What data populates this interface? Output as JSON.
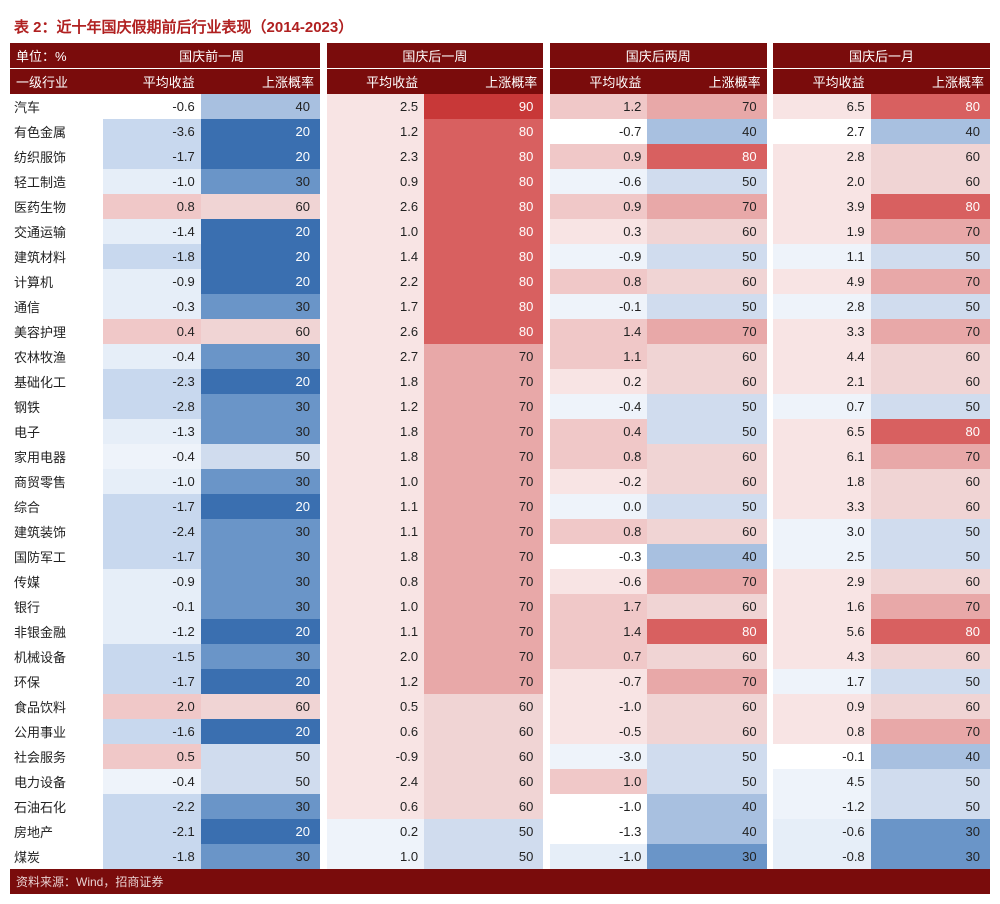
{
  "title": "表 2：近十年国庆假期前后行业表现（2014-2023）",
  "unit_label": "单位：%",
  "col_industry": "一级行业",
  "col_return": "平均收益",
  "col_prob": "上涨概率",
  "footer": "资料来源：Wind，招商证券",
  "periods": [
    "国庆前一周",
    "国庆后一周",
    "国庆后两周",
    "国庆后一月"
  ],
  "col_widths": {
    "label": 86,
    "ret": 90,
    "prob": 110,
    "sep": 6
  },
  "colors": {
    "header_bg": "#7a0c0c",
    "header_fg": "#ffffff",
    "title_fg": "#b02020",
    "prob_scale": {
      "20": "#3a6fb0",
      "30": "#6a95c8",
      "40": "#a8c0e0",
      "50": "#d0dcee",
      "60": "#f0d4d4",
      "70": "#e8a8a8",
      "80": "#d86060",
      "90": "#c83838"
    },
    "ret_bg_default": "#ffffff"
  },
  "rows": [
    {
      "n": "汽车",
      "v": [
        [
          -0.6,
          40
        ],
        [
          2.5,
          90
        ],
        [
          1.2,
          70
        ],
        [
          6.5,
          80
        ]
      ]
    },
    {
      "n": "有色金属",
      "v": [
        [
          -3.6,
          20
        ],
        [
          1.2,
          80
        ],
        [
          -0.7,
          40
        ],
        [
          2.7,
          40
        ]
      ]
    },
    {
      "n": "纺织服饰",
      "v": [
        [
          -1.7,
          20
        ],
        [
          2.3,
          80
        ],
        [
          0.9,
          80
        ],
        [
          2.8,
          60
        ]
      ]
    },
    {
      "n": "轻工制造",
      "v": [
        [
          -1.0,
          30
        ],
        [
          0.9,
          80
        ],
        [
          -0.6,
          50
        ],
        [
          2.0,
          60
        ]
      ]
    },
    {
      "n": "医药生物",
      "v": [
        [
          0.8,
          60
        ],
        [
          2.6,
          80
        ],
        [
          0.9,
          70
        ],
        [
          3.9,
          80
        ]
      ]
    },
    {
      "n": "交通运输",
      "v": [
        [
          -1.4,
          20
        ],
        [
          1.0,
          80
        ],
        [
          0.3,
          60
        ],
        [
          1.9,
          70
        ]
      ]
    },
    {
      "n": "建筑材料",
      "v": [
        [
          -1.8,
          20
        ],
        [
          1.4,
          80
        ],
        [
          -0.9,
          50
        ],
        [
          1.1,
          50
        ]
      ]
    },
    {
      "n": "计算机",
      "v": [
        [
          -0.9,
          20
        ],
        [
          2.2,
          80
        ],
        [
          0.8,
          60
        ],
        [
          4.9,
          70
        ]
      ]
    },
    {
      "n": "通信",
      "v": [
        [
          -0.3,
          30
        ],
        [
          1.7,
          80
        ],
        [
          -0.1,
          50
        ],
        [
          2.8,
          50
        ]
      ]
    },
    {
      "n": "美容护理",
      "v": [
        [
          0.4,
          60
        ],
        [
          2.6,
          80
        ],
        [
          1.4,
          70
        ],
        [
          3.3,
          70
        ]
      ]
    },
    {
      "n": "农林牧渔",
      "v": [
        [
          -0.4,
          30
        ],
        [
          2.7,
          70
        ],
        [
          1.1,
          60
        ],
        [
          4.4,
          60
        ]
      ]
    },
    {
      "n": "基础化工",
      "v": [
        [
          -2.3,
          20
        ],
        [
          1.8,
          70
        ],
        [
          0.2,
          60
        ],
        [
          2.1,
          60
        ]
      ]
    },
    {
      "n": "钢铁",
      "v": [
        [
          -2.8,
          30
        ],
        [
          1.2,
          70
        ],
        [
          -0.4,
          50
        ],
        [
          0.7,
          50
        ]
      ]
    },
    {
      "n": "电子",
      "v": [
        [
          -1.3,
          30
        ],
        [
          1.8,
          70
        ],
        [
          0.4,
          50
        ],
        [
          6.5,
          80
        ]
      ]
    },
    {
      "n": "家用电器",
      "v": [
        [
          -0.4,
          50
        ],
        [
          1.8,
          70
        ],
        [
          0.8,
          60
        ],
        [
          6.1,
          70
        ]
      ]
    },
    {
      "n": "商贸零售",
      "v": [
        [
          -1.0,
          30
        ],
        [
          1.0,
          70
        ],
        [
          -0.2,
          60
        ],
        [
          1.8,
          60
        ]
      ]
    },
    {
      "n": "综合",
      "v": [
        [
          -1.7,
          20
        ],
        [
          1.1,
          70
        ],
        [
          0.0,
          50
        ],
        [
          3.3,
          60
        ]
      ]
    },
    {
      "n": "建筑装饰",
      "v": [
        [
          -2.4,
          30
        ],
        [
          1.1,
          70
        ],
        [
          0.8,
          60
        ],
        [
          3.0,
          50
        ]
      ]
    },
    {
      "n": "国防军工",
      "v": [
        [
          -1.7,
          30
        ],
        [
          1.8,
          70
        ],
        [
          -0.3,
          40
        ],
        [
          2.5,
          50
        ]
      ]
    },
    {
      "n": "传媒",
      "v": [
        [
          -0.9,
          30
        ],
        [
          0.8,
          70
        ],
        [
          -0.6,
          70
        ],
        [
          2.9,
          60
        ]
      ]
    },
    {
      "n": "银行",
      "v": [
        [
          -0.1,
          30
        ],
        [
          1.0,
          70
        ],
        [
          1.7,
          60
        ],
        [
          1.6,
          70
        ]
      ]
    },
    {
      "n": "非银金融",
      "v": [
        [
          -1.2,
          20
        ],
        [
          1.1,
          70
        ],
        [
          1.4,
          80
        ],
        [
          5.6,
          80
        ]
      ]
    },
    {
      "n": "机械设备",
      "v": [
        [
          -1.5,
          30
        ],
        [
          2.0,
          70
        ],
        [
          0.7,
          60
        ],
        [
          4.3,
          60
        ]
      ]
    },
    {
      "n": "环保",
      "v": [
        [
          -1.7,
          20
        ],
        [
          1.2,
          70
        ],
        [
          -0.7,
          70
        ],
        [
          1.7,
          50
        ]
      ]
    },
    {
      "n": "食品饮料",
      "v": [
        [
          2.0,
          60
        ],
        [
          0.5,
          60
        ],
        [
          -1.0,
          60
        ],
        [
          0.9,
          60
        ]
      ]
    },
    {
      "n": "公用事业",
      "v": [
        [
          -1.6,
          20
        ],
        [
          0.6,
          60
        ],
        [
          -0.5,
          60
        ],
        [
          0.8,
          70
        ]
      ]
    },
    {
      "n": "社会服务",
      "v": [
        [
          0.5,
          50
        ],
        [
          -0.9,
          60
        ],
        [
          -3.0,
          50
        ],
        [
          -0.1,
          40
        ]
      ]
    },
    {
      "n": "电力设备",
      "v": [
        [
          -0.4,
          50
        ],
        [
          2.4,
          60
        ],
        [
          1.0,
          50
        ],
        [
          4.5,
          50
        ]
      ]
    },
    {
      "n": "石油石化",
      "v": [
        [
          -2.2,
          30
        ],
        [
          0.6,
          60
        ],
        [
          -1.0,
          40
        ],
        [
          -1.2,
          50
        ]
      ]
    },
    {
      "n": "房地产",
      "v": [
        [
          -2.1,
          20
        ],
        [
          0.2,
          50
        ],
        [
          -1.3,
          40
        ],
        [
          -0.6,
          30
        ]
      ]
    },
    {
      "n": "煤炭",
      "v": [
        [
          -1.8,
          30
        ],
        [
          1.0,
          50
        ],
        [
          -1.0,
          30
        ],
        [
          -0.8,
          30
        ]
      ]
    }
  ]
}
